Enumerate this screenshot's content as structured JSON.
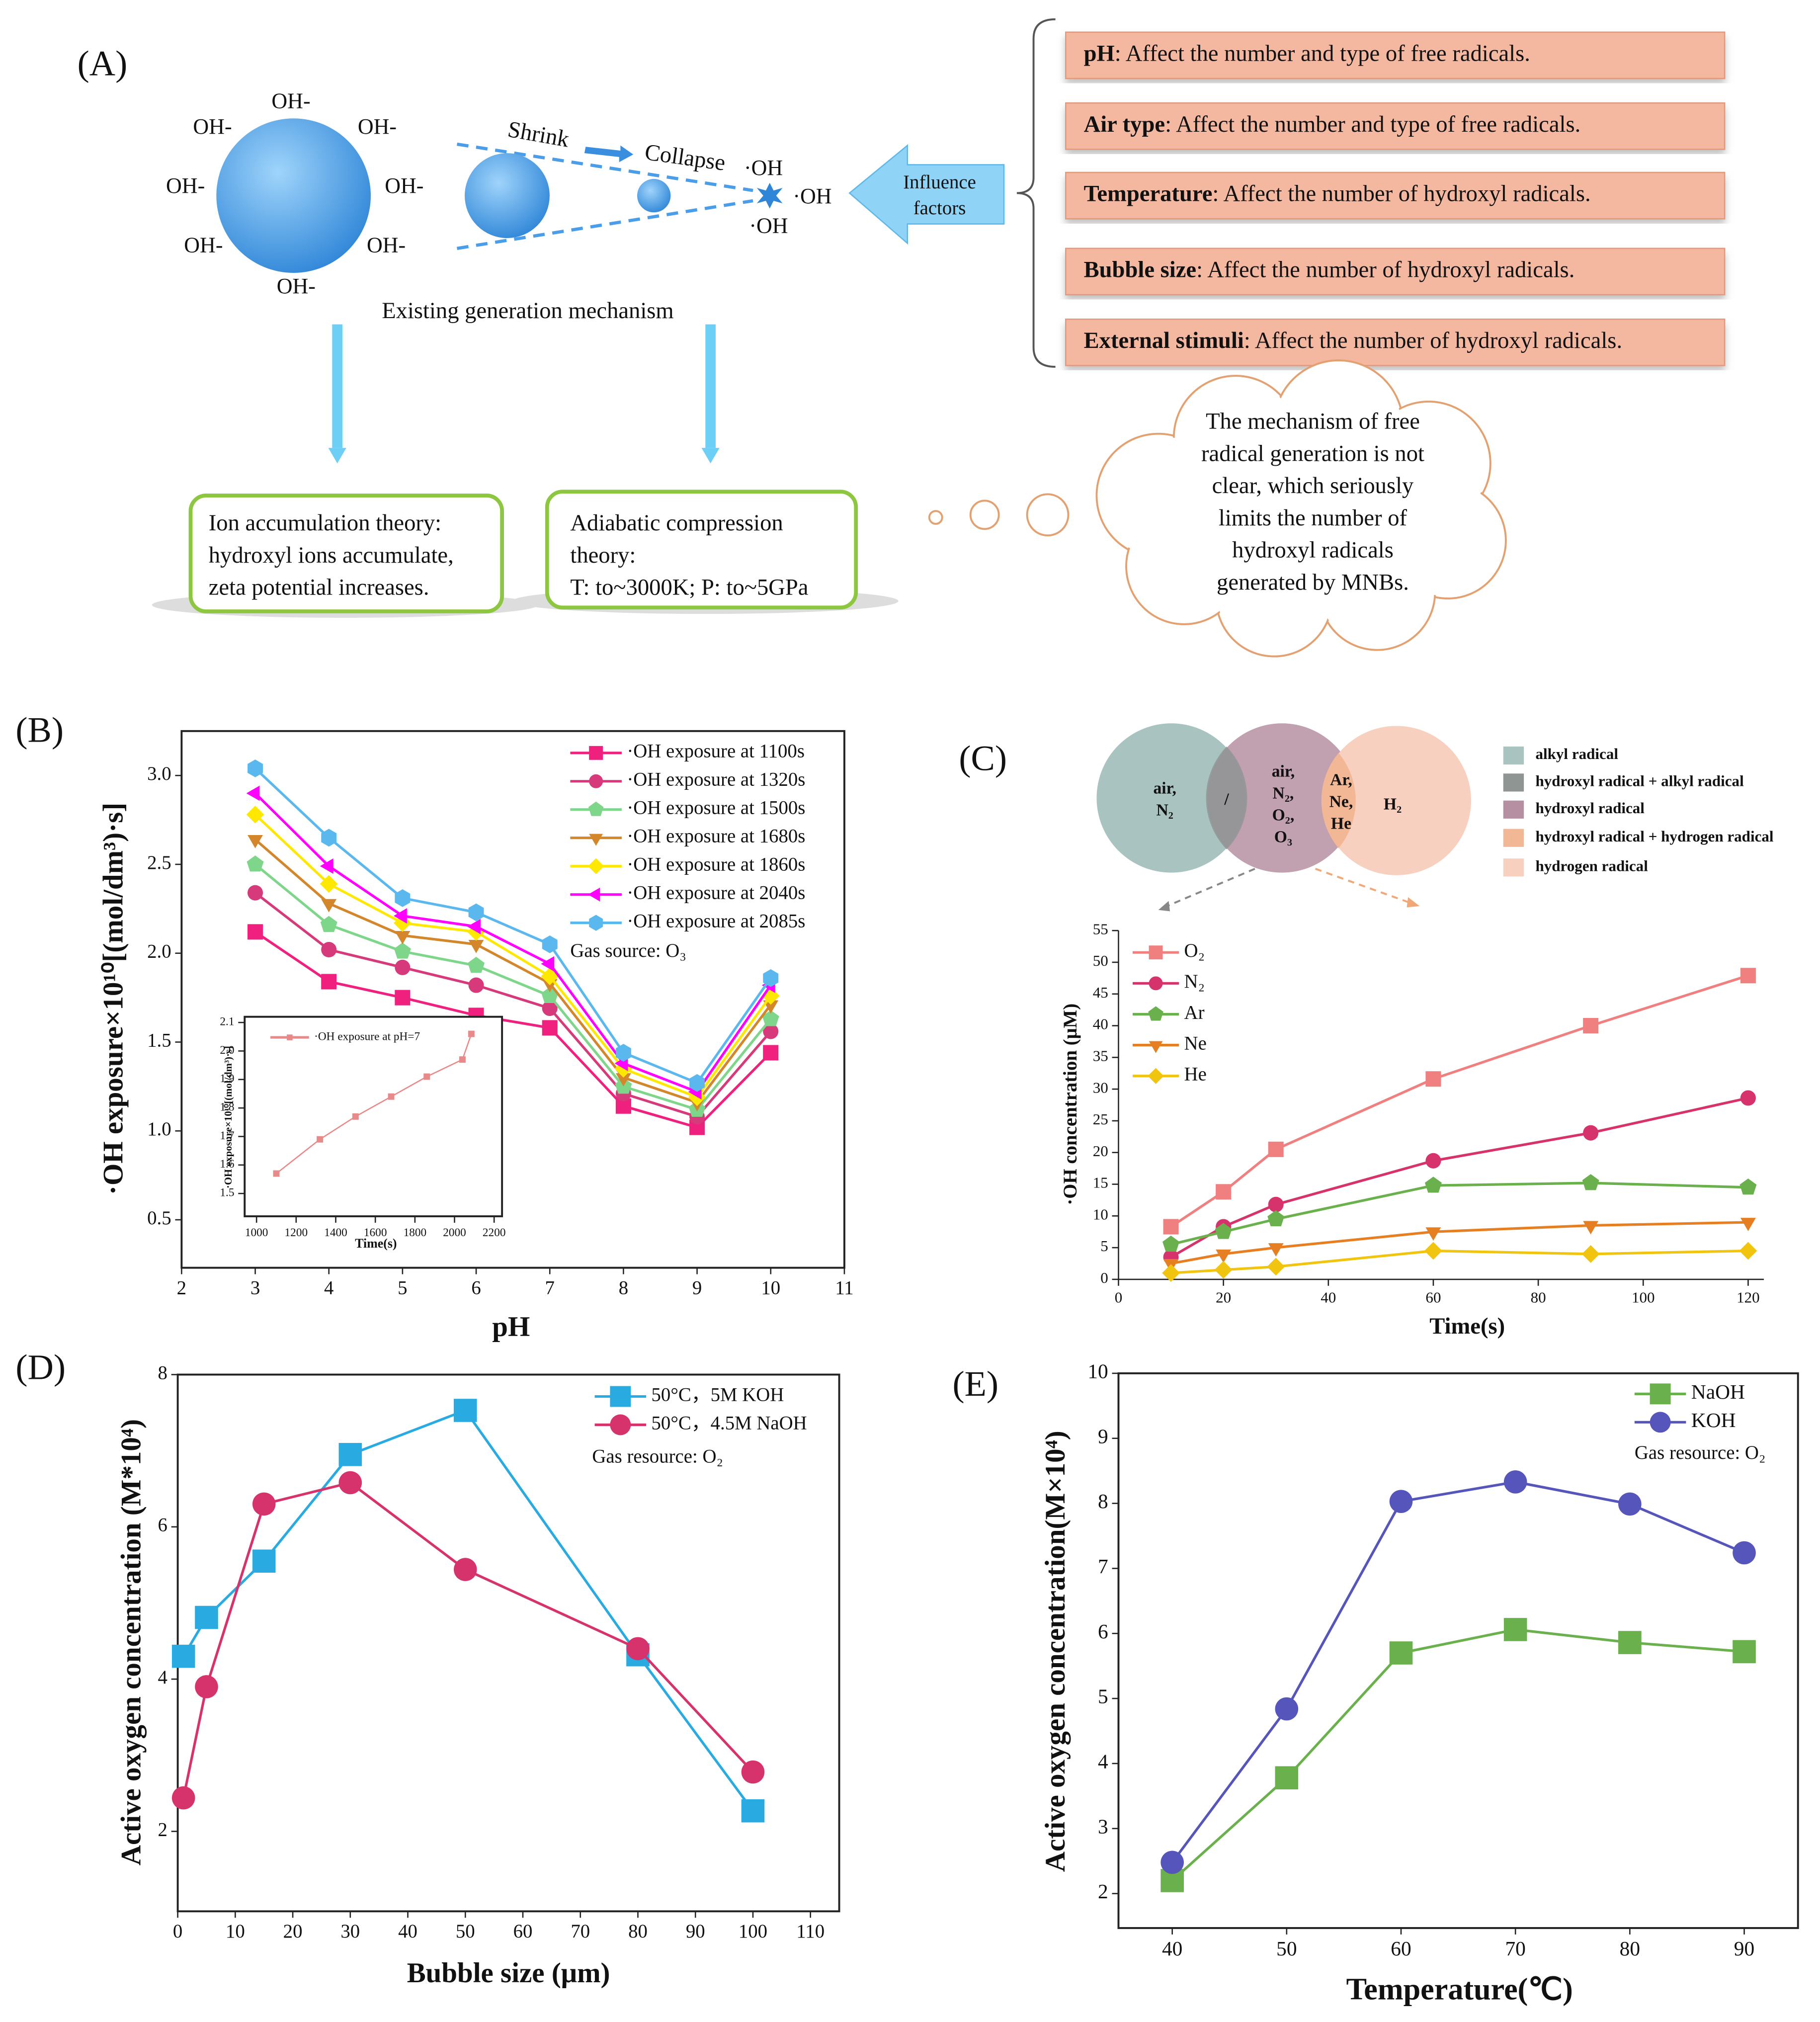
{
  "diagram": {
    "label": "(A)",
    "ions": [
      "OH-",
      "OH-",
      "OH-",
      "OH-",
      "OH-",
      "OH-",
      "OH-",
      "OH-"
    ],
    "shrink": "Shrink",
    "collapse": "Collapse",
    "radicals": [
      "·OH",
      "·OH",
      "·OH"
    ],
    "influence": [
      "Influence",
      "factors"
    ],
    "factors": [
      {
        "name": "pH",
        "text": ": Affect the number and type of free radicals."
      },
      {
        "name": "Air type",
        "text": ": Affect the number and type of free radicals."
      },
      {
        "name": "Temperature",
        "text": ": Affect the number of hydroxyl radicals."
      },
      {
        "name": "Bubble size",
        "text": ": Affect the number of hydroxyl radicals."
      },
      {
        "name": "External stimuli",
        "text": ": Affect the number of hydroxyl radicals."
      }
    ],
    "mechanism": "Existing generation mechanism",
    "theory1": [
      "Ion accumulation theory:",
      "hydroxyl ions accumulate,",
      "zeta potential increases."
    ],
    "theory2": [
      "Adiabatic compression",
      "theory:",
      "T: to~3000K; P: to~5GPa"
    ],
    "cloud": [
      "The mechanism of free",
      "radical generation is not",
      "clear, which seriously",
      "limits the number of",
      "hydroxyl radicals",
      "generated by MNBs."
    ]
  },
  "venn": {
    "regions": [
      [
        "air,",
        "N₂"
      ],
      [
        "/"
      ],
      [
        "air,",
        "N₂,",
        "O₂,",
        "O₃"
      ],
      [
        "Ar,",
        "Ne,",
        "He"
      ],
      [
        "H₂"
      ]
    ],
    "legend": [
      {
        "name": "alkyl radical",
        "color": "#a9c4c0"
      },
      {
        "name": "hydroxyl radical + alkyl radical",
        "color": "#8f9593"
      },
      {
        "name": "hydroxyl radical",
        "color": "#b68fa2"
      },
      {
        "name": "hydroxyl radical + hydrogen radical",
        "color": "#f2b895"
      },
      {
        "name": "hydrogen radical",
        "color": "#f7d0c0"
      }
    ]
  },
  "chart_data": [
    {
      "type": "line",
      "panel_label": "(B)",
      "x_label": "pH",
      "y_label": "·OH exposure×10¹⁰[(mol/dm³)·s]",
      "annotation": "Gas source: O₃",
      "x": [
        3,
        4,
        5,
        6,
        7,
        8,
        9,
        10
      ],
      "xlim": [
        2,
        11
      ],
      "xticks": [
        2,
        3,
        4,
        5,
        6,
        7,
        8,
        9,
        10,
        11
      ],
      "ylim": [
        0.23,
        3.25
      ],
      "yticks": [
        0.5,
        {
          "value": 1,
          "label": "1.0"
        },
        1.5,
        {
          "value": 2,
          "label": "2.0"
        },
        2.5,
        {
          "value": 3,
          "label": "3.0"
        }
      ],
      "series": [
        {
          "name": "·OH exposure at 1100s",
          "color": "#f0207e",
          "marker": "square",
          "values": [
            2.12,
            1.84,
            1.75,
            1.65,
            1.58,
            1.14,
            1.02,
            1.44
          ]
        },
        {
          "name": "·OH exposure at 1320s",
          "color": "#d63a7a",
          "marker": "circle",
          "values": [
            2.34,
            2.02,
            1.92,
            1.82,
            1.69,
            1.21,
            1.08,
            1.56
          ]
        },
        {
          "name": "·OH exposure at 1500s",
          "color": "#7ed68a",
          "marker": "pentagon",
          "values": [
            2.5,
            2.16,
            2.01,
            1.93,
            1.76,
            1.25,
            1.12,
            1.63
          ]
        },
        {
          "name": "·OH exposure at 1680s",
          "color": "#d4862a",
          "marker": "triangle-down",
          "values": [
            2.64,
            2.28,
            2.1,
            2.05,
            1.83,
            1.3,
            1.16,
            1.71
          ]
        },
        {
          "name": "·OH exposure at 1860s",
          "color": "#ffe800",
          "marker": "diamond",
          "values": [
            2.78,
            2.39,
            2.17,
            2.12,
            1.87,
            1.35,
            1.19,
            1.76
          ]
        },
        {
          "name": "·OH exposure at 2040s",
          "color": "#ff00ff",
          "marker": "triangle-left",
          "values": [
            2.9,
            2.49,
            2.21,
            2.15,
            1.94,
            1.38,
            1.22,
            1.82
          ]
        },
        {
          "name": "·OH exposure at 2085s",
          "color": "#5bb8ee",
          "marker": "hexagon",
          "values": [
            3.04,
            2.65,
            2.31,
            2.23,
            2.05,
            1.44,
            1.27,
            1.86
          ]
        }
      ]
    },
    {
      "type": "line",
      "x_label": "Time(s)",
      "y_label": "·OH exposure×10¹⁰[(mol/dm³)·s]",
      "x": [
        1100,
        1320,
        1500,
        1680,
        1860,
        2040,
        2085
      ],
      "xlim": [
        940,
        2240
      ],
      "xticks": [
        1000,
        1200,
        1400,
        1600,
        1800,
        2000,
        2200
      ],
      "ylim": [
        1.42,
        2.12
      ],
      "yticks": [
        1.5,
        1.6,
        1.7,
        1.8,
        1.9,
        {
          "value": 2,
          "label": "2.0"
        },
        2.1
      ],
      "series": [
        {
          "name": "·OH exposure at pH=7",
          "color": "#e88a8a",
          "marker": "square",
          "values": [
            1.57,
            1.69,
            1.77,
            1.84,
            1.91,
            1.97,
            2.06
          ]
        }
      ]
    },
    {
      "type": "line",
      "panel_label": "(C)",
      "x_label": "Time(s)",
      "y_label": "·OH concentration (μM)",
      "x": [
        10,
        20,
        30,
        60,
        90,
        120
      ],
      "xlim": [
        0,
        123
      ],
      "xticks": [
        0,
        20,
        40,
        60,
        80,
        100,
        120
      ],
      "ylim": [
        0,
        55
      ],
      "yticks": [
        0,
        5,
        10,
        15,
        20,
        25,
        30,
        35,
        40,
        45,
        50,
        55
      ],
      "series": [
        {
          "name": "O₂",
          "color": "#f08080",
          "marker": "square",
          "values": [
            8.3,
            13.8,
            20.5,
            31.6,
            40,
            47.9
          ]
        },
        {
          "name": "N₂",
          "color": "#d6336c",
          "marker": "circle",
          "values": [
            3.5,
            8.3,
            11.8,
            18.7,
            23.1,
            28.6
          ]
        },
        {
          "name": "Ar",
          "color": "#6ab04c",
          "marker": "pentagon",
          "values": [
            5.5,
            7.5,
            9.5,
            14.8,
            15.2,
            14.5
          ]
        },
        {
          "name": "Ne",
          "color": "#e67e22",
          "marker": "triangle-down",
          "values": [
            2.5,
            4,
            5,
            7.5,
            8.5,
            9
          ]
        },
        {
          "name": "He",
          "color": "#f1c40f",
          "marker": "diamond",
          "values": [
            1,
            1.5,
            2,
            4.5,
            4,
            4.5
          ]
        }
      ]
    },
    {
      "type": "line",
      "panel_label": "(D)",
      "x_label": "Bubble size (μm)",
      "y_label": "Active oxygen concentration (M*10⁴)",
      "annotation": "Gas resource: O₂",
      "x": [
        1,
        5,
        15,
        30,
        50,
        80,
        100
      ],
      "xlim": [
        0,
        115
      ],
      "xticks": [
        0,
        10,
        20,
        30,
        40,
        50,
        60,
        70,
        80,
        90,
        100,
        110
      ],
      "ylim": [
        0.95,
        8
      ],
      "yticks": [
        2,
        4,
        6,
        8
      ],
      "series": [
        {
          "name": "50°C，5M KOH",
          "color": "#29abe2",
          "marker": "square",
          "values": [
            4.3,
            4.81,
            5.55,
            6.95,
            7.53,
            4.32,
            2.27
          ]
        },
        {
          "name": "50°C，4.5M NaOH",
          "color": "#d6336c",
          "marker": "circle",
          "values": [
            2.44,
            3.9,
            6.3,
            6.58,
            5.44,
            4.4,
            2.78
          ]
        }
      ]
    },
    {
      "type": "line",
      "panel_label": "(E)",
      "x_label": "Temperature(℃)",
      "y_label": "Active oxygen concentration(M×10⁴)",
      "annotation": "Gas resource: O₂",
      "x": [
        40,
        50,
        60,
        70,
        80,
        90
      ],
      "xlim": [
        35.3,
        94.7
      ],
      "xticks": [
        40,
        50,
        60,
        70,
        80,
        90
      ],
      "ylim": [
        1.47,
        10
      ],
      "yticks": [
        2,
        3,
        4,
        5,
        6,
        7,
        8,
        9,
        10
      ],
      "series": [
        {
          "name": "NaOH",
          "color": "#6ab04c",
          "marker": "square",
          "values": [
            2.2,
            3.78,
            5.7,
            6.06,
            5.86,
            5.72
          ]
        },
        {
          "name": "KOH",
          "color": "#5555bb",
          "marker": "circle",
          "values": [
            2.48,
            4.84,
            8.03,
            8.33,
            7.99,
            7.24
          ]
        }
      ]
    }
  ]
}
